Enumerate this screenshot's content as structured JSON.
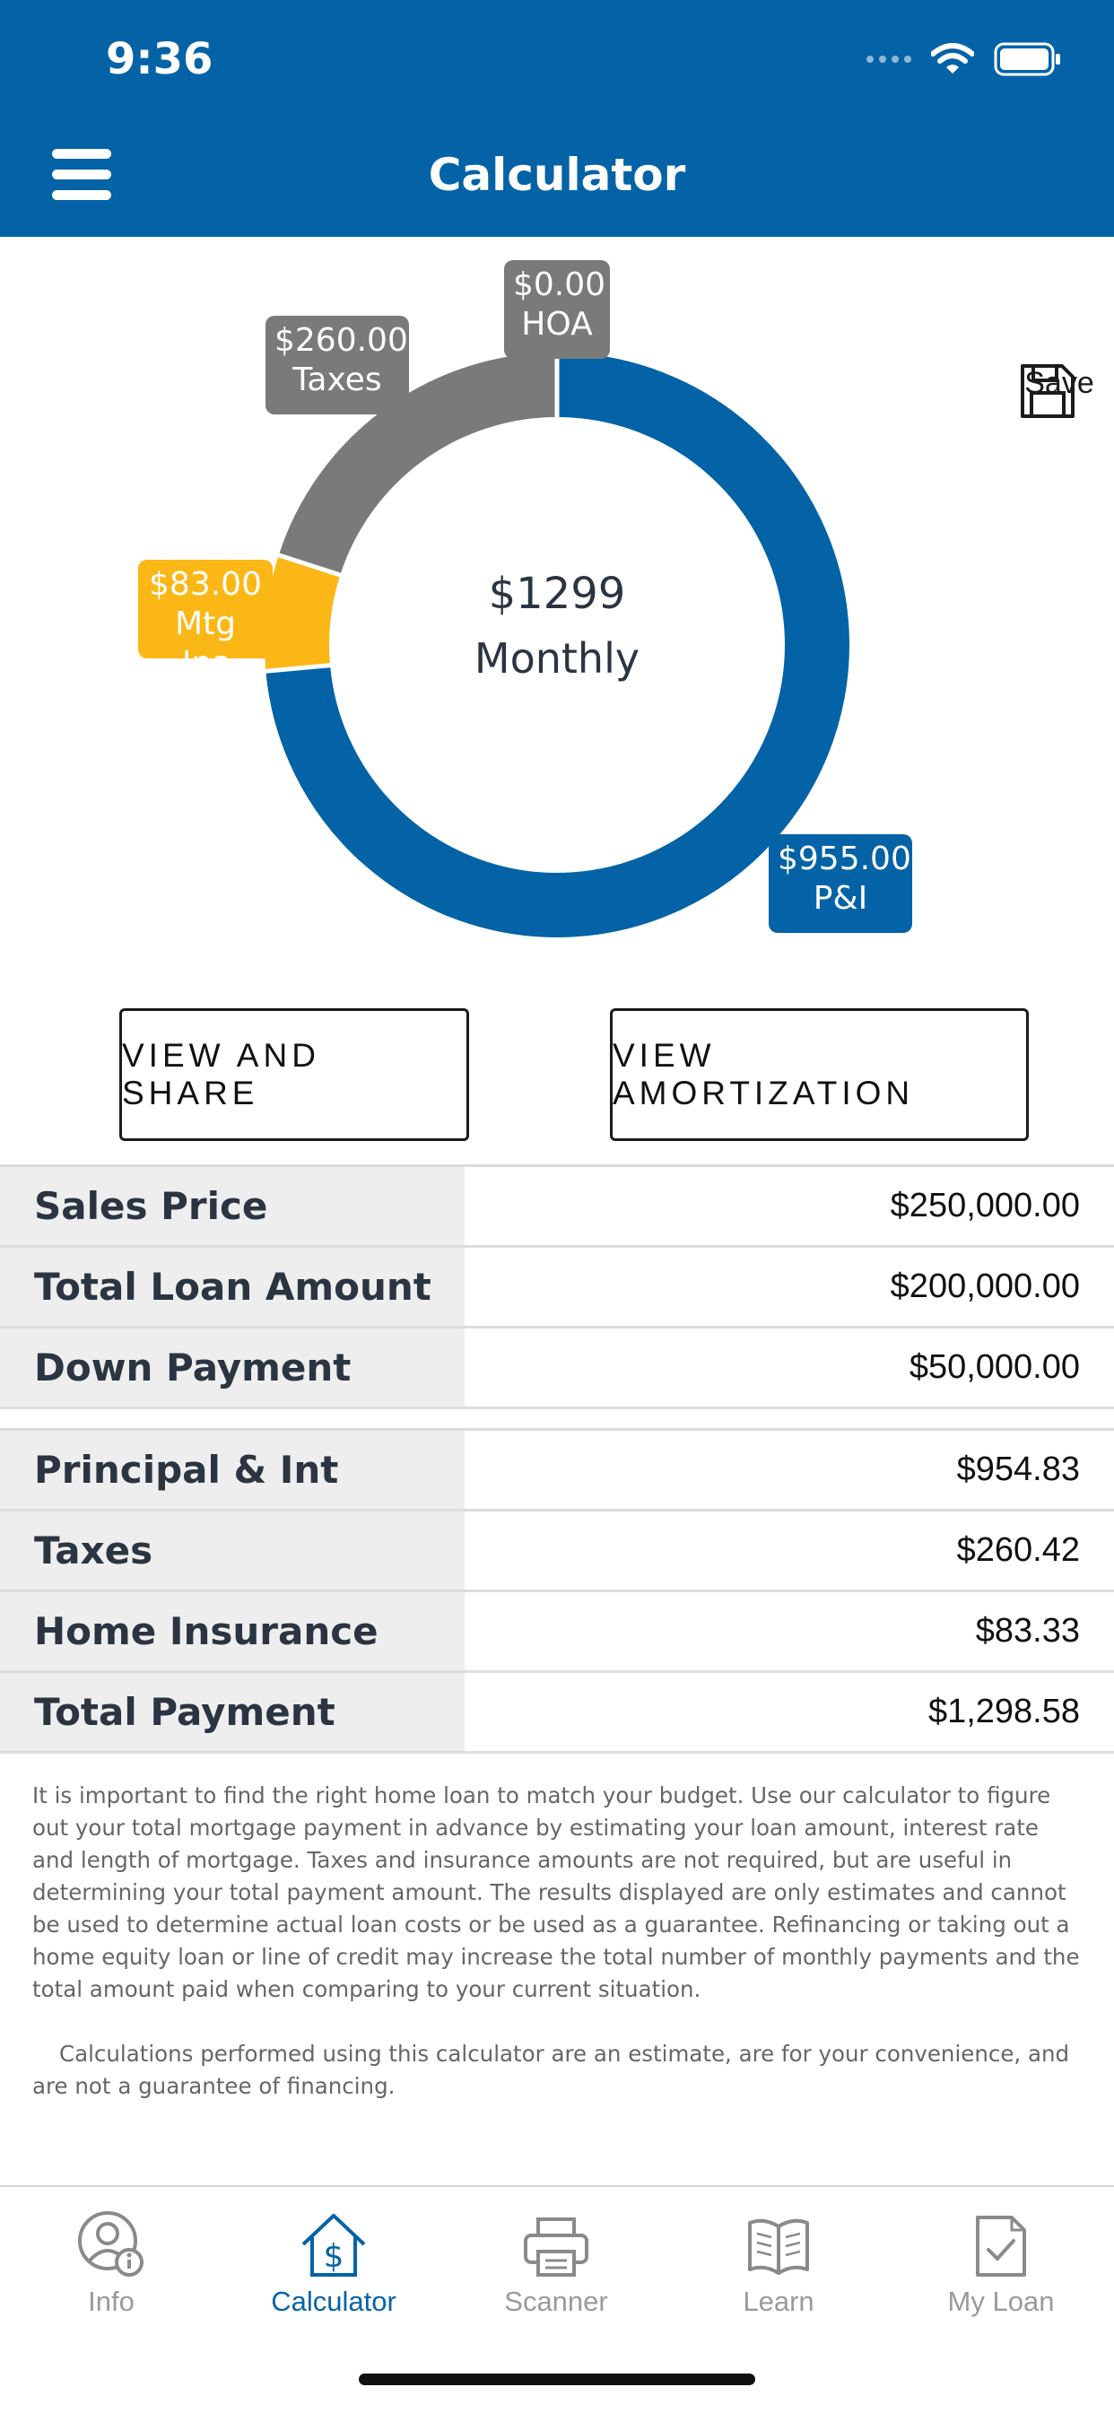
{
  "status_bar": {
    "time": "9:36"
  },
  "header": {
    "title": "Calculator"
  },
  "colors": {
    "brand_blue": "#0463a6",
    "taxes_gray": "#7a7a7a",
    "hoa_gray": "#7a7a7a",
    "mtg_ins_yellow": "#fbb716"
  },
  "payment_chart": {
    "center_amount": "$1299",
    "center_label": "Monthly",
    "segments": [
      {
        "name": "P&I",
        "amount": "$955.00",
        "value": 955.0
      },
      {
        "name": "Mtg Ins",
        "amount": "$83.00",
        "value": 83.0
      },
      {
        "name": "Taxes",
        "amount": "$260.00",
        "value": 260.0
      },
      {
        "name": "HOA",
        "amount": "$0.00",
        "value": 0.0
      }
    ]
  },
  "save": {
    "label": "Save"
  },
  "buttons": {
    "view_share": "VIEW AND SHARE",
    "view_amortization": "VIEW AMORTIZATION"
  },
  "loan_table": [
    {
      "label": "Sales Price",
      "value": "$250,000.00"
    },
    {
      "label": "Total Loan Amount",
      "value": "$200,000.00"
    },
    {
      "label": "Down Payment",
      "value": "$50,000.00"
    }
  ],
  "payment_table": [
    {
      "label": "Principal & Int",
      "value": "$954.83"
    },
    {
      "label": "Taxes",
      "value": "$260.42"
    },
    {
      "label": "Home Insurance",
      "value": "$83.33"
    },
    {
      "label": "Total Payment",
      "value": "$1,298.58"
    }
  ],
  "disclaimer": {
    "paragraph1": "It is important to find the right home loan to match your budget. Use our calculator to figure out your total mortgage payment in advance by estimating your loan amount, interest rate and length of mortgage. Taxes and insurance amounts are not required, but are useful in determining your total payment amount. The results displayed are only estimates and cannot be used to determine actual loan costs or be used as a guarantee. Refinancing or taking out a home equity loan or line of credit may increase the total number of monthly payments and the total amount paid when comparing to your current situation.",
    "paragraph2": "Calculations performed using this calculator are an estimate, are for your convenience, and are not a guarantee of financing."
  },
  "tabbar": {
    "tabs": [
      {
        "label": "Info",
        "icon": "user-info-icon"
      },
      {
        "label": "Calculator",
        "icon": "house-dollar-icon",
        "active": true
      },
      {
        "label": "Scanner",
        "icon": "printer-icon"
      },
      {
        "label": "Learn",
        "icon": "open-book-icon"
      },
      {
        "label": "My Loan",
        "icon": "document-check-icon"
      }
    ]
  }
}
